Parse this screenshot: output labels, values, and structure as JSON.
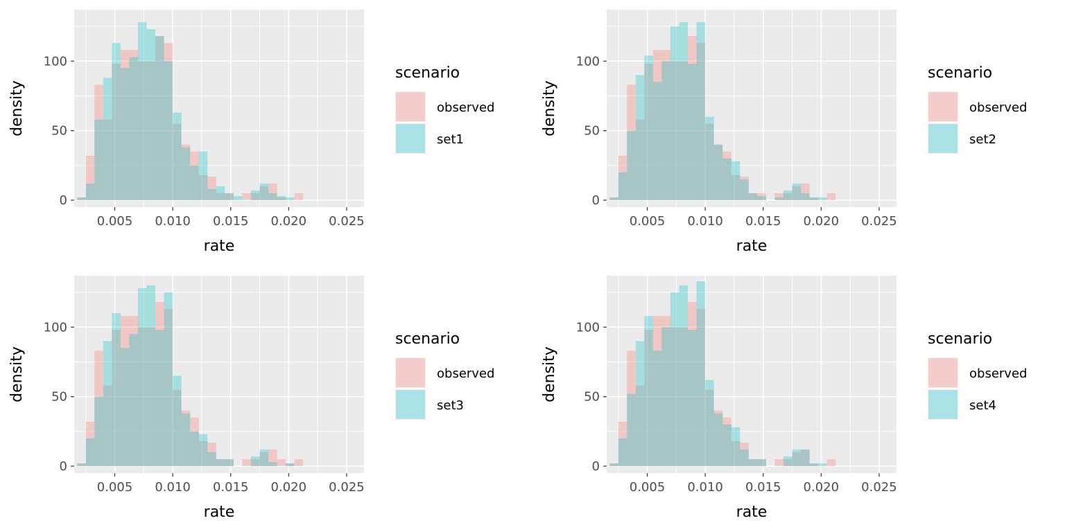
{
  "colors": {
    "observed": "#F8766D",
    "set": "#00BFC4",
    "panel_background": "#EBEBEB",
    "grid": "#FFFFFF"
  },
  "chart_data": [
    {
      "type": "histogram",
      "xlabel": "rate",
      "ylabel": "density",
      "xlim": [
        0.0015,
        0.0265
      ],
      "ylim": [
        -5,
        137
      ],
      "xticks": [
        "0.005",
        "0.010",
        "0.015",
        "0.020",
        "0.025"
      ],
      "yticks": [
        "0",
        "50",
        "100"
      ],
      "bin_start": 0.00175,
      "bin_width": 0.00075,
      "legend": {
        "title": "scenario",
        "position": "right",
        "entries": [
          "observed",
          "set1"
        ]
      },
      "series": [
        {
          "name": "observed",
          "values": [
            2,
            32,
            83,
            58,
            98,
            108,
            108,
            100,
            100,
            118,
            113,
            55,
            40,
            35,
            18,
            17,
            5,
            5,
            0,
            5,
            5,
            10,
            12,
            2,
            0,
            5
          ]
        },
        {
          "name": "set1",
          "values": [
            2,
            12,
            58,
            88,
            113,
            95,
            103,
            128,
            123,
            118,
            100,
            63,
            38,
            25,
            35,
            8,
            10,
            5,
            3,
            0,
            7,
            12,
            5,
            3,
            2,
            0
          ]
        }
      ]
    },
    {
      "type": "histogram",
      "xlabel": "rate",
      "ylabel": "density",
      "xlim": [
        0.0015,
        0.0265
      ],
      "ylim": [
        -5,
        137
      ],
      "xticks": [
        "0.005",
        "0.010",
        "0.015",
        "0.020",
        "0.025"
      ],
      "yticks": [
        "0",
        "50",
        "100"
      ],
      "bin_start": 0.00175,
      "bin_width": 0.00075,
      "legend": {
        "title": "scenario",
        "position": "right",
        "entries": [
          "observed",
          "set2"
        ]
      },
      "series": [
        {
          "name": "observed",
          "values": [
            2,
            32,
            83,
            58,
            98,
            108,
            108,
            100,
            100,
            118,
            113,
            55,
            40,
            35,
            18,
            17,
            5,
            5,
            0,
            5,
            5,
            10,
            12,
            2,
            0,
            5
          ]
        },
        {
          "name": "set2",
          "values": [
            2,
            20,
            50,
            90,
            104,
            85,
            100,
            125,
            128,
            98,
            128,
            60,
            40,
            30,
            28,
            15,
            5,
            3,
            0,
            2,
            7,
            12,
            5,
            2,
            2,
            0
          ]
        }
      ]
    },
    {
      "type": "histogram",
      "xlabel": "rate",
      "ylabel": "density",
      "xlim": [
        0.0015,
        0.0265
      ],
      "ylim": [
        -5,
        137
      ],
      "xticks": [
        "0.005",
        "0.010",
        "0.015",
        "0.020",
        "0.025"
      ],
      "yticks": [
        "0",
        "50",
        "100"
      ],
      "bin_start": 0.00175,
      "bin_width": 0.00075,
      "legend": {
        "title": "scenario",
        "position": "right",
        "entries": [
          "observed",
          "set3"
        ]
      },
      "series": [
        {
          "name": "observed",
          "values": [
            2,
            32,
            83,
            58,
            98,
            108,
            108,
            100,
            100,
            118,
            113,
            55,
            40,
            35,
            18,
            17,
            5,
            5,
            0,
            5,
            5,
            10,
            12,
            5,
            2,
            5
          ]
        },
        {
          "name": "set3",
          "values": [
            2,
            20,
            50,
            90,
            110,
            85,
            95,
            128,
            130,
            98,
            125,
            65,
            38,
            25,
            23,
            10,
            5,
            5,
            0,
            0,
            7,
            12,
            3,
            0,
            2,
            0
          ]
        }
      ]
    },
    {
      "type": "histogram",
      "xlabel": "rate",
      "ylabel": "density",
      "xlim": [
        0.0015,
        0.0265
      ],
      "ylim": [
        -5,
        137
      ],
      "xticks": [
        "0.005",
        "0.010",
        "0.015",
        "0.020",
        "0.025"
      ],
      "yticks": [
        "0",
        "50",
        "100"
      ],
      "bin_start": 0.00175,
      "bin_width": 0.00075,
      "legend": {
        "title": "scenario",
        "position": "right",
        "entries": [
          "observed",
          "set4"
        ]
      },
      "series": [
        {
          "name": "observed",
          "values": [
            2,
            32,
            83,
            58,
            98,
            108,
            108,
            100,
            100,
            118,
            113,
            55,
            40,
            35,
            18,
            17,
            5,
            5,
            0,
            5,
            5,
            10,
            12,
            2,
            0,
            5
          ]
        },
        {
          "name": "set4",
          "values": [
            2,
            20,
            52,
            90,
            108,
            83,
            100,
            125,
            130,
            98,
            133,
            62,
            38,
            30,
            28,
            12,
            5,
            5,
            0,
            0,
            7,
            12,
            12,
            2,
            2,
            0
          ]
        }
      ]
    }
  ]
}
